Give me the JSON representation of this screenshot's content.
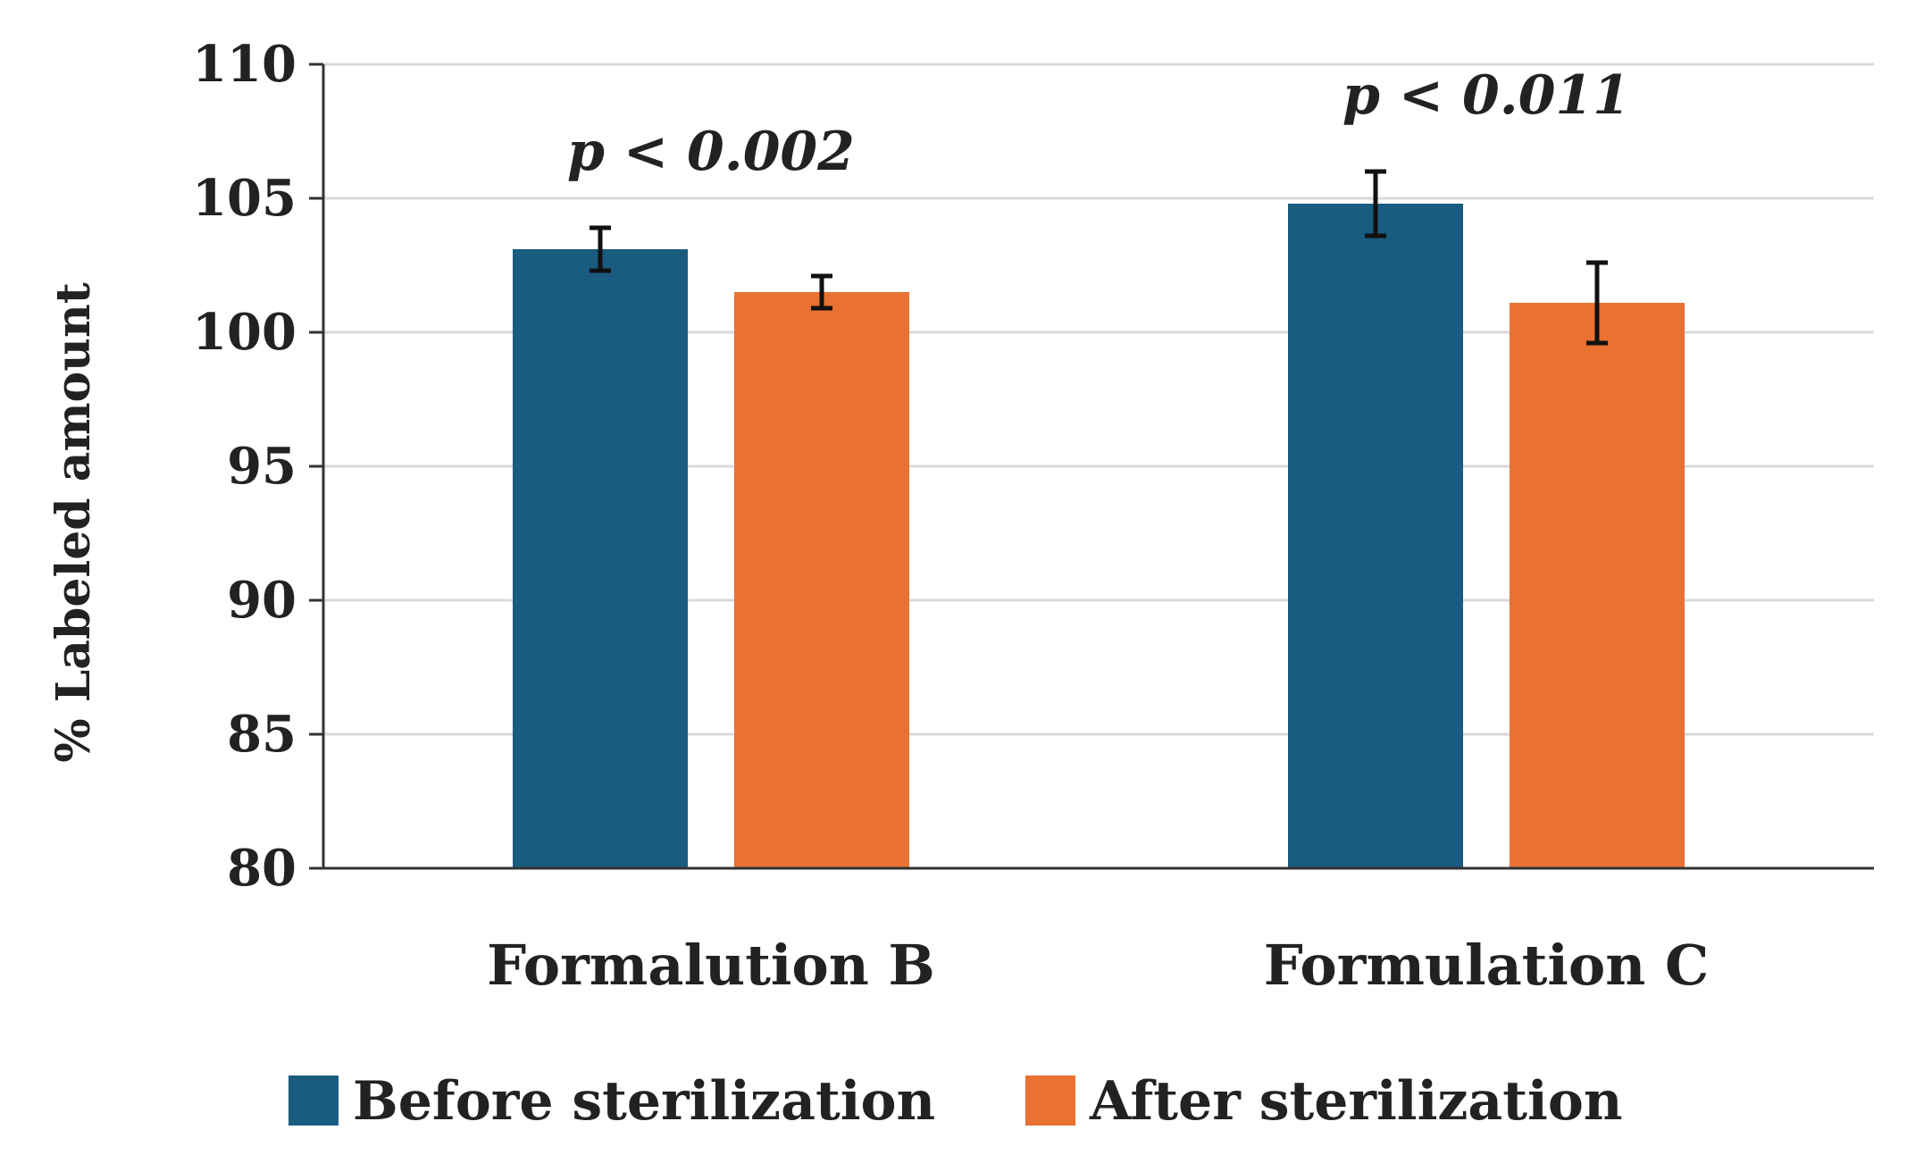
{
  "chart_data": {
    "type": "bar",
    "title": "",
    "xlabel": "",
    "ylabel": "% Labeled amount",
    "ylim": [
      80,
      110
    ],
    "yticks": [
      80,
      85,
      90,
      95,
      100,
      105,
      110
    ],
    "ytick_labels": [
      "80",
      "85",
      "90",
      "95",
      "100",
      "105",
      "110"
    ],
    "grid": true,
    "categories": [
      "Formalution B",
      "Formulation C"
    ],
    "series": [
      {
        "name": "Before sterilization",
        "color": "#1a5b80",
        "values": [
          103.1,
          104.8
        ],
        "errors": [
          0.8,
          1.2
        ]
      },
      {
        "name": "After sterilization",
        "color": "#e97132",
        "values": [
          101.5,
          101.1
        ],
        "errors": [
          0.6,
          1.5
        ]
      }
    ],
    "annotations": [
      {
        "category": "Formalution B",
        "text": "p < 0.002"
      },
      {
        "category": "Formulation C",
        "text": "p < 0.011"
      }
    ],
    "legend": {
      "position": "bottom",
      "items": [
        "Before sterilization",
        "After sterilization"
      ]
    }
  }
}
